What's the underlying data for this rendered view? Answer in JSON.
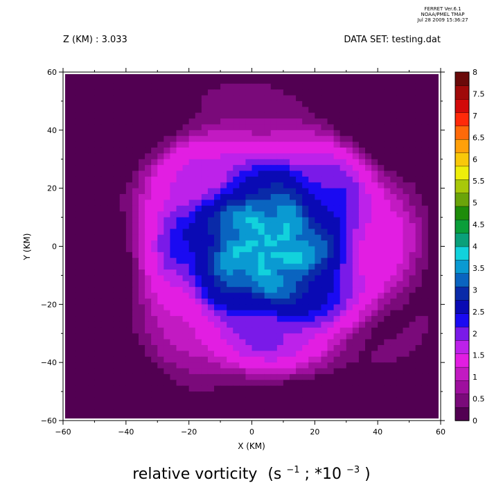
{
  "header": {
    "program": "FERRET  Ver.6.1",
    "organization": "NOAA/PMEL TMAP",
    "timestamp": "Jul 28 2009 15:36:27",
    "z_label": "Z (KM) : 3.033",
    "dataset_label": "DATA SET: testing.dat"
  },
  "chart_data": {
    "type": "heatmap",
    "title": "relative vorticity",
    "title_units": "(s",
    "title_units_exp1": "−1",
    "title_units_mid": "; *10",
    "title_units_exp2": "−3",
    "title_units_end": ")",
    "xlabel": "X (KM)",
    "ylabel": "Y (KM)",
    "xlim": [
      -60,
      60
    ],
    "ylim": [
      -60,
      60
    ],
    "x_ticks": [
      -60,
      -40,
      -20,
      0,
      20,
      40,
      60
    ],
    "y_ticks": [
      -60,
      -40,
      -20,
      0,
      20,
      40,
      60
    ],
    "colorbar": {
      "levels": [
        0,
        0.5,
        1,
        1.5,
        2,
        2.5,
        3,
        3.5,
        4,
        4.5,
        5,
        5.5,
        6,
        6.5,
        7,
        7.5,
        8
      ],
      "labels": [
        "0",
        "0.5",
        "1",
        "1.5",
        "2",
        "2.5",
        "3",
        "3.5",
        "4",
        "4.5",
        "5",
        "5.5",
        "6",
        "6.5",
        "7",
        "7.5",
        "8"
      ],
      "colors": [
        "#520052",
        "#7a0a7a",
        "#9e0f9e",
        "#c21ac2",
        "#e21ee2",
        "#bd22ea",
        "#7a1ae8",
        "#1a0af2",
        "#0a0ab4",
        "#0a2aa8",
        "#0a64c0",
        "#0a9ad2",
        "#12d2dc",
        "#0aa07a",
        "#0a9e3a",
        "#1e8c0a",
        "#6aa40a",
        "#a8c80a",
        "#eeee0a",
        "#f8c80a",
        "#ffa00a",
        "#ff6a0a",
        "#ff2a0a",
        "#d20a0a",
        "#a00a0a",
        "#6a0a0a"
      ]
    },
    "field": {
      "vortex_center": [
        5,
        0
      ],
      "core_peak": 3.4,
      "core_radius_km": 26,
      "ring_radius_km": 34,
      "ring_peak": 1.3,
      "background": 0.3
    }
  }
}
